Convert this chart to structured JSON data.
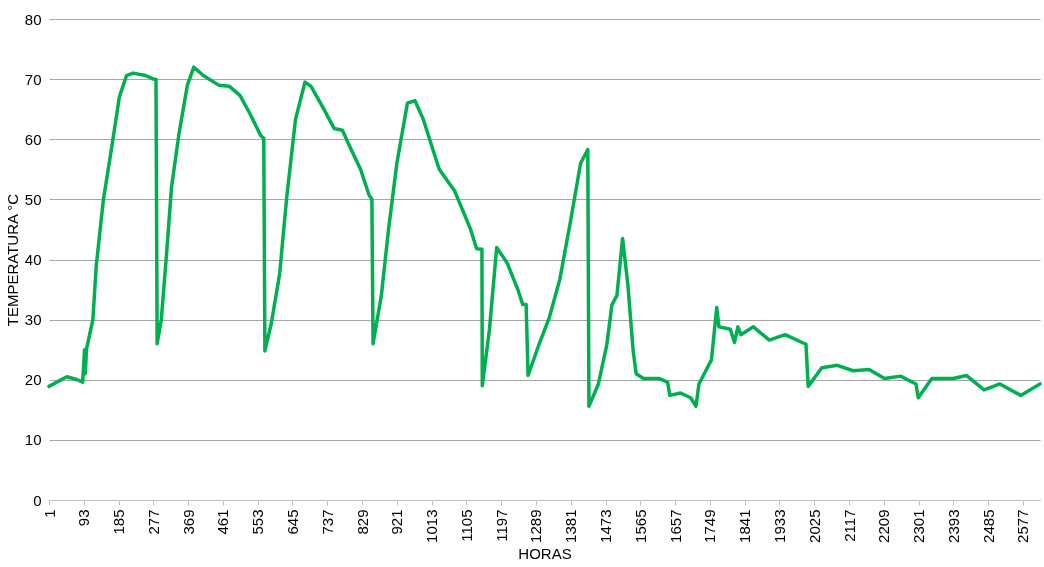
{
  "chart_data": {
    "type": "line",
    "xlabel": "HORAS",
    "ylabel": "TEMPERATURA °C",
    "x": [
      1,
      48,
      76,
      90,
      95,
      97,
      100,
      117,
      126,
      145,
      167,
      187,
      206,
      223,
      256,
      278,
      284,
      287,
      298,
      312,
      325,
      345,
      367,
      384,
      409,
      450,
      478,
      506,
      533,
      561,
      569,
      572,
      589,
      611,
      630,
      653,
      678,
      694,
      728,
      755,
      777,
      797,
      825,
      847,
      855,
      858,
      880,
      899,
      921,
      949,
      969,
      991,
      1033,
      1074,
      1116,
      1132,
      1146,
      1147,
      1166,
      1185,
      1213,
      1241,
      1254,
      1263,
      1268,
      1296,
      1324,
      1352,
      1379,
      1407,
      1426,
      1429,
      1454,
      1476,
      1490,
      1503,
      1518,
      1532,
      1546,
      1554,
      1573,
      1615,
      1637,
      1643,
      1671,
      1698,
      1712,
      1720,
      1753,
      1767,
      1773,
      1803,
      1814,
      1823,
      1831,
      1864,
      1906,
      1948,
      2003,
      2009,
      2045,
      2086,
      2128,
      2170,
      2211,
      2253,
      2294,
      2300,
      2336,
      2392,
      2428,
      2474,
      2516,
      2571,
      2622
    ],
    "series": [
      {
        "color": "#00b050",
        "values": [
          18.9,
          20.5,
          20,
          19.6,
          25,
          21,
          25,
          30,
          39,
          50,
          58.7,
          67,
          70.6,
          71,
          70.6,
          70,
          70,
          26,
          30,
          41,
          52,
          61,
          69,
          72,
          70.6,
          69,
          68.8,
          67.3,
          64.2,
          60.6,
          60.2,
          24.8,
          29.4,
          37.6,
          50.5,
          63.3,
          69.5,
          68.8,
          65,
          61.8,
          61.5,
          58.7,
          55,
          50.8,
          50,
          26,
          34,
          45,
          56,
          66,
          66.4,
          63.3,
          55,
          51.4,
          45,
          41.8,
          41.7,
          19,
          28.4,
          42,
          39.4,
          35,
          32.5,
          32.5,
          20.7,
          25.7,
          30.3,
          36.7,
          45.9,
          56,
          58.3,
          15.6,
          19.3,
          25.7,
          32.5,
          34,
          43.5,
          35.8,
          24.8,
          21,
          20.2,
          20.2,
          19.6,
          17.4,
          17.8,
          17,
          15.6,
          19.3,
          23.3,
          32,
          28.8,
          28.4,
          26.2,
          28.8,
          27.5,
          28.8,
          26.6,
          27.5,
          25.9,
          18.9,
          22,
          22.4,
          21.5,
          21.7,
          20.2,
          20.6,
          19.3,
          17,
          20.2,
          20.2,
          20.7,
          18.3,
          19.3,
          17.4,
          19.3
        ]
      }
    ],
    "xlim": [
      1,
      2622
    ],
    "xticks": [
      1,
      93,
      185,
      277,
      369,
      461,
      553,
      645,
      737,
      829,
      921,
      1013,
      1105,
      1197,
      1289,
      1381,
      1473,
      1565,
      1657,
      1749,
      1841,
      1933,
      2025,
      2117,
      2209,
      2301,
      2393,
      2485,
      2577
    ],
    "ylim": [
      0,
      80
    ],
    "yticks": [
      0,
      10,
      20,
      30,
      40,
      50,
      60,
      70,
      80
    ],
    "grid": "y",
    "marker": "none",
    "line_style": "solid"
  }
}
